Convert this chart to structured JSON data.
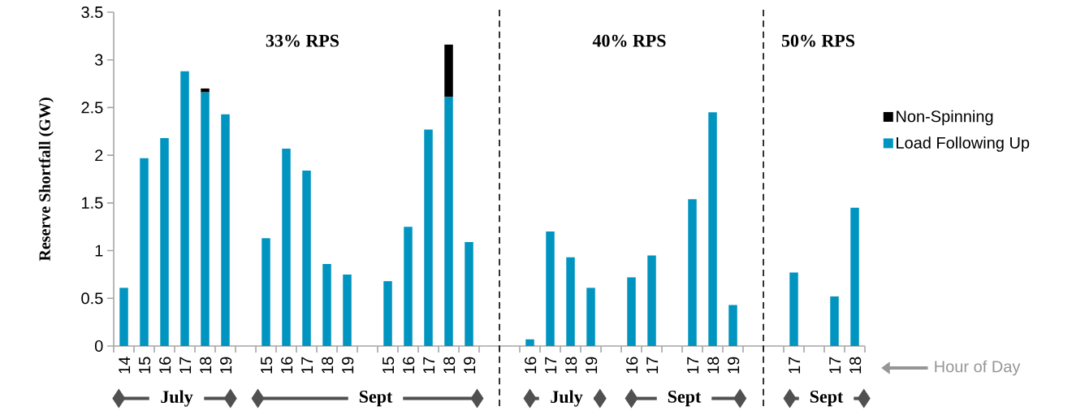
{
  "chart_data": {
    "type": "bar",
    "stacked": true,
    "ylabel": "Reserve Shortfall (GW)",
    "categories": [
      "14",
      "15",
      "16",
      "17",
      "18",
      "19",
      null,
      "15",
      "16",
      "17",
      "18",
      "19",
      null,
      "15",
      "16",
      "17",
      "18",
      "19",
      null,
      null,
      "16",
      "17",
      "18",
      "19",
      null,
      "16",
      "17",
      null,
      "17",
      "18",
      "19",
      null,
      null,
      "17",
      null,
      "17",
      "18"
    ],
    "series": [
      {
        "name": "Load Following Up",
        "color": "#0095c0",
        "values": [
          0.61,
          1.97,
          2.18,
          2.88,
          2.66,
          2.43,
          null,
          1.13,
          2.07,
          1.84,
          0.86,
          0.75,
          null,
          0.68,
          1.25,
          2.27,
          2.61,
          1.09,
          null,
          null,
          0.07,
          1.2,
          0.93,
          0.61,
          null,
          0.72,
          0.95,
          null,
          1.54,
          2.45,
          0.43,
          null,
          null,
          0.77,
          null,
          0.52,
          1.45
        ]
      },
      {
        "name": "Non-Spinning",
        "color": "#000000",
        "values": [
          null,
          null,
          null,
          null,
          0.04,
          null,
          null,
          null,
          null,
          null,
          null,
          null,
          null,
          null,
          null,
          null,
          0.55,
          null,
          null,
          null,
          null,
          null,
          null,
          null,
          null,
          null,
          null,
          null,
          null,
          null,
          null,
          null,
          null,
          null,
          null,
          null,
          null
        ]
      }
    ],
    "ylim": [
      0,
      3.5
    ],
    "yticks": [
      0,
      0.5,
      1,
      1.5,
      2,
      2.5,
      3,
      3.5
    ],
    "legend": "right",
    "annotations": [
      "33% RPS",
      "40% RPS",
      "50% RPS",
      "July",
      "Sept",
      "July",
      "Sept",
      "Sept",
      "Hour of Day"
    ]
  }
}
